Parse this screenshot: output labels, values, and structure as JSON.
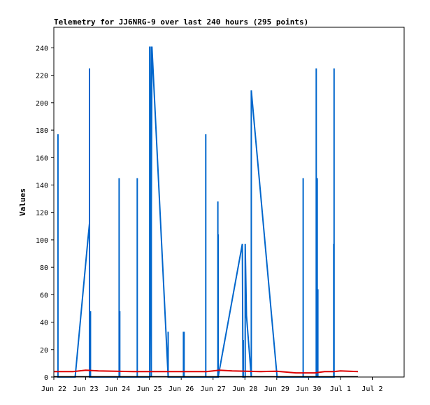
{
  "chart_data": {
    "type": "line",
    "title": "Telemetry for JJ6NRG-9 over last 240 hours (295 points)",
    "xlabel": "",
    "ylabel": "Values",
    "x_ticks": [
      "Jun 22",
      "Jun 23",
      "Jun 24",
      "Jun 25",
      "Jun 26",
      "Jun 27",
      "Jun 28",
      "Jun 29",
      "Jun 30",
      "Jul 1",
      "Jul 2"
    ],
    "xlim": [
      0,
      11
    ],
    "y_ticks": [
      0,
      20,
      40,
      60,
      80,
      100,
      120,
      140,
      160,
      180,
      200,
      220,
      240
    ],
    "ylim": [
      0,
      255
    ],
    "grid": false,
    "series": [
      {
        "color": "#0066cc",
        "points": [
          [
            0.13,
            0
          ],
          [
            0.13,
            177
          ],
          [
            0.13,
            0
          ],
          [
            0.67,
            0
          ],
          [
            1.07,
            100
          ],
          [
            1.12,
            112
          ],
          [
            1.12,
            225
          ],
          [
            1.12,
            0
          ],
          [
            1.15,
            0
          ],
          [
            1.15,
            48
          ],
          [
            1.15,
            0
          ],
          [
            2.05,
            0
          ],
          [
            2.05,
            145
          ],
          [
            2.05,
            0
          ],
          [
            2.07,
            0
          ],
          [
            2.07,
            48
          ],
          [
            2.07,
            0
          ],
          [
            2.62,
            0
          ],
          [
            2.62,
            145
          ],
          [
            2.62,
            0
          ],
          [
            3.01,
            0
          ],
          [
            3.01,
            241
          ],
          [
            3.06,
            0
          ],
          [
            3.06,
            241
          ],
          [
            3.06,
            120
          ],
          [
            3.08,
            241
          ],
          [
            3.59,
            0
          ],
          [
            3.59,
            33
          ],
          [
            3.59,
            0
          ],
          [
            4.07,
            0
          ],
          [
            4.07,
            33
          ],
          [
            4.09,
            0
          ],
          [
            4.09,
            33
          ],
          [
            4.09,
            0
          ],
          [
            4.77,
            0
          ],
          [
            4.77,
            177
          ],
          [
            4.77,
            0
          ],
          [
            5.15,
            0
          ],
          [
            5.15,
            128
          ],
          [
            5.15,
            0
          ],
          [
            5.16,
            0
          ],
          [
            5.16,
            104
          ],
          [
            5.16,
            0
          ],
          [
            5.92,
            97
          ],
          [
            5.94,
            0
          ],
          [
            5.95,
            0
          ],
          [
            5.95,
            27
          ],
          [
            5.95,
            0
          ],
          [
            6.01,
            0
          ],
          [
            6.01,
            97
          ],
          [
            6.05,
            45
          ],
          [
            6.2,
            0
          ],
          [
            6.2,
            209
          ],
          [
            7.01,
            0
          ],
          [
            7.83,
            0
          ],
          [
            7.83,
            145
          ],
          [
            7.83,
            0
          ],
          [
            8.24,
            0
          ],
          [
            8.24,
            225
          ],
          [
            8.24,
            0
          ],
          [
            8.27,
            0
          ],
          [
            8.27,
            145
          ],
          [
            8.27,
            0
          ],
          [
            8.29,
            0
          ],
          [
            8.29,
            64
          ],
          [
            8.29,
            0
          ],
          [
            8.79,
            0
          ],
          [
            8.79,
            97
          ],
          [
            8.79,
            0
          ],
          [
            8.8,
            0
          ],
          [
            8.8,
            225
          ],
          [
            8.8,
            0
          ]
        ]
      },
      {
        "color": "#dd0000",
        "points": [
          [
            0,
            4
          ],
          [
            0.6,
            4
          ],
          [
            1.0,
            5
          ],
          [
            1.4,
            4.5
          ],
          [
            2.5,
            4
          ],
          [
            3.8,
            4
          ],
          [
            4.8,
            4
          ],
          [
            5.2,
            5
          ],
          [
            5.6,
            4.5
          ],
          [
            6.5,
            4
          ],
          [
            7.0,
            4.2
          ],
          [
            7.6,
            3
          ],
          [
            8.2,
            3
          ],
          [
            8.5,
            4
          ],
          [
            8.8,
            4
          ],
          [
            9.0,
            4.5
          ],
          [
            9.55,
            4
          ]
        ]
      }
    ]
  }
}
